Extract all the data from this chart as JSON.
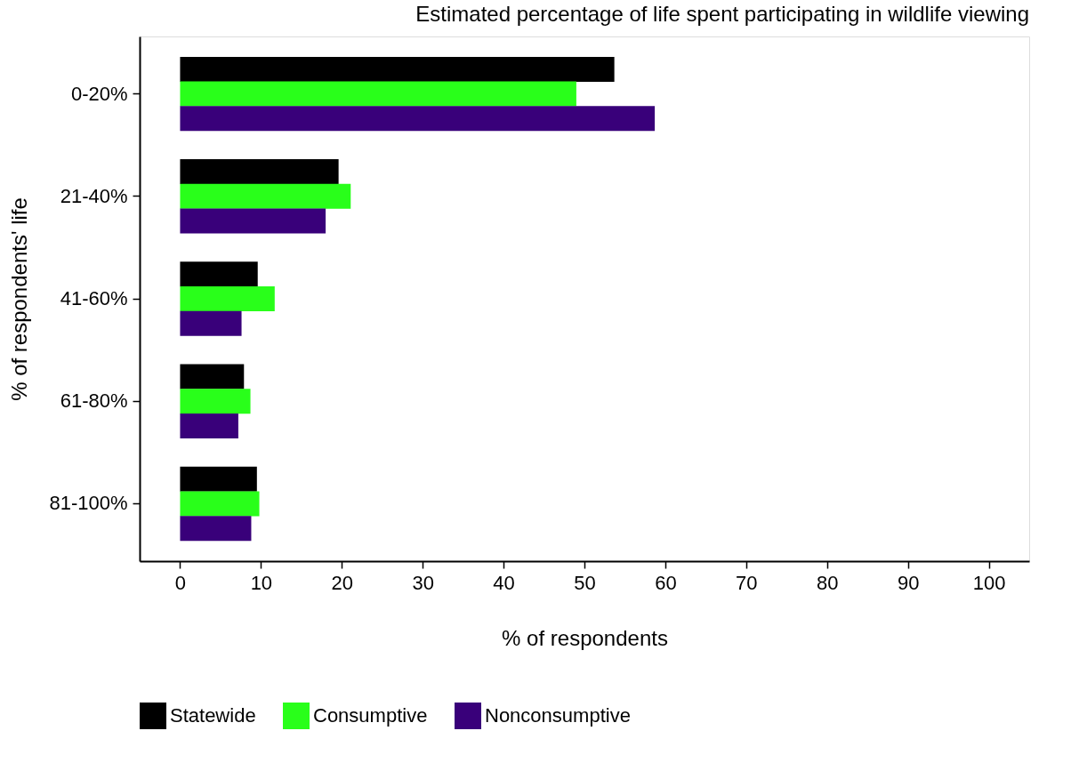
{
  "chart_data": {
    "type": "bar",
    "orientation": "horizontal",
    "title": "Estimated percentage of life spent participating in wildlife viewing",
    "xlabel": "% of respondents",
    "ylabel": "% of respondents' life",
    "categories": [
      "0-20%",
      "21-40%",
      "41-60%",
      "61-80%",
      "81-100%"
    ],
    "series": [
      {
        "name": "Statewide",
        "color": "#000000",
        "values": [
          53.7,
          19.6,
          9.6,
          7.9,
          9.5
        ]
      },
      {
        "name": "Consumptive",
        "color": "#29ff1a",
        "values": [
          49.0,
          21.1,
          11.7,
          8.7,
          9.8
        ]
      },
      {
        "name": "Nonconsumptive",
        "color": "#39007a",
        "values": [
          58.7,
          18.0,
          7.6,
          7.2,
          8.8
        ]
      }
    ],
    "xlim": [
      -5,
      105
    ],
    "xticks": [
      0,
      10,
      20,
      30,
      40,
      50,
      60,
      70,
      80,
      90,
      100
    ],
    "grid": false,
    "legend": "bottom"
  }
}
